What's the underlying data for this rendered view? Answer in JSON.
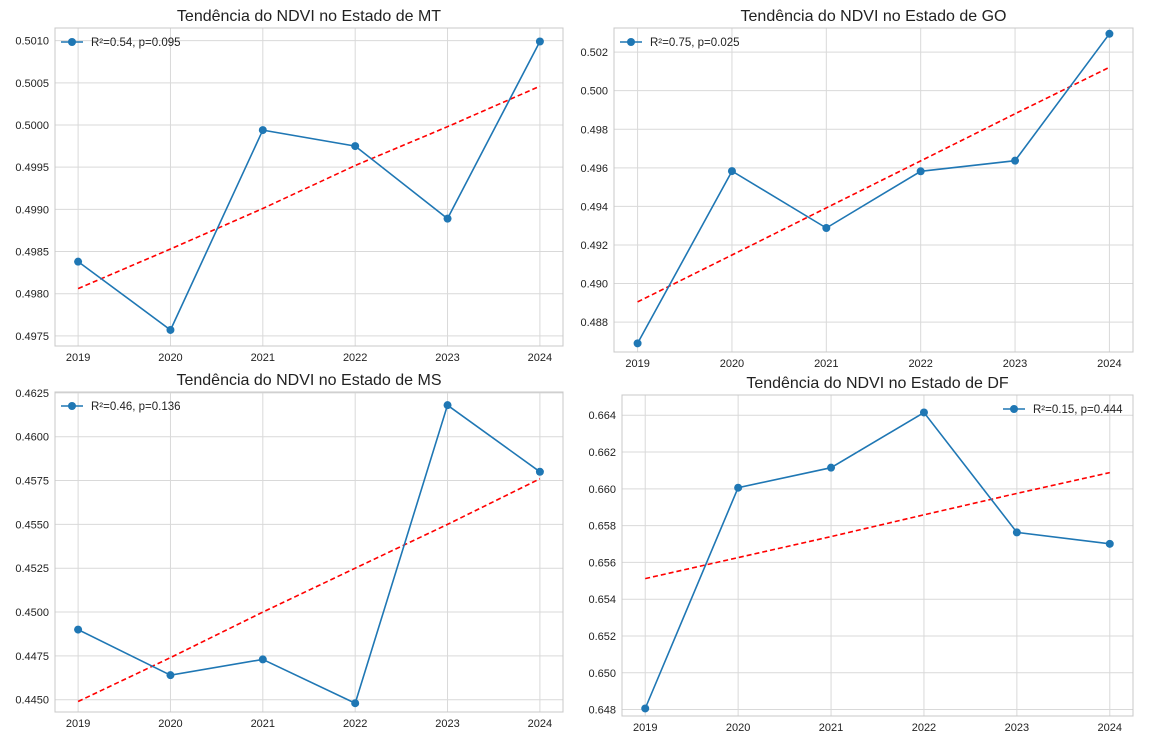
{
  "colors": {
    "line": "#1f77b4",
    "trend": "#ff0000",
    "grid": "#d9d9d9",
    "axis": "#c8c8c8",
    "text": "#222222"
  },
  "chart_data": [
    {
      "type": "line",
      "title": "Tendência do NDVI no Estado de MT",
      "x": [
        2019,
        2020,
        2021,
        2022,
        2023,
        2024
      ],
      "x_ticks": [
        "2019",
        "2020",
        "2021",
        "2022",
        "2023",
        "2024"
      ],
      "y_ticks": [
        "0.4975",
        "0.4980",
        "0.4985",
        "0.4990",
        "0.4995",
        "0.5000",
        "0.5005",
        "0.5010"
      ],
      "ylim": [
        0.49738,
        0.50115
      ],
      "series": [
        {
          "name": "R²=0.54, p=0.095",
          "values": [
            0.49838,
            0.49757,
            0.49994,
            0.49975,
            0.49889,
            0.50099
          ]
        },
        {
          "values": [
            0.49806,
            0.49853,
            0.49901,
            0.49952,
            0.49998,
            0.50046
          ]
        }
      ],
      "legend": "top-left",
      "grid": true
    },
    {
      "type": "line",
      "title": "Tendência do NDVI no Estado de GO",
      "x": [
        2019,
        2020,
        2021,
        2022,
        2023,
        2024
      ],
      "x_ticks": [
        "2019",
        "2020",
        "2021",
        "2022",
        "2023",
        "2024"
      ],
      "y_ticks": [
        "0.488",
        "0.490",
        "0.492",
        "0.494",
        "0.496",
        "0.498",
        "0.500",
        "0.502"
      ],
      "ylim": [
        0.48645,
        0.50325
      ],
      "series": [
        {
          "name": "R²=0.75, p=0.025",
          "values": [
            0.4869,
            0.49583,
            0.49288,
            0.49582,
            0.49637,
            0.50295
          ]
        },
        {
          "values": [
            0.48905,
            0.49148,
            0.49392,
            0.49636,
            0.4988,
            0.50121
          ]
        }
      ],
      "legend": "top-left",
      "grid": true
    },
    {
      "type": "line",
      "title": "Tendência do NDVI no Estado de MS",
      "x": [
        2019,
        2020,
        2021,
        2022,
        2023,
        2024
      ],
      "x_ticks": [
        "2019",
        "2020",
        "2021",
        "2022",
        "2023",
        "2024"
      ],
      "y_ticks": [
        "0.4450",
        "0.4475",
        "0.4500",
        "0.4525",
        "0.4550",
        "0.4575",
        "0.4600",
        "0.4625"
      ],
      "ylim": [
        0.4443,
        0.46255
      ],
      "series": [
        {
          "name": "R²=0.46, p=0.136",
          "values": [
            0.449,
            0.4464,
            0.4473,
            0.4448,
            0.4618,
            0.458
          ]
        },
        {
          "values": [
            0.4449,
            0.4474,
            0.45,
            0.4525,
            0.455,
            0.4576
          ]
        }
      ],
      "legend": "top-left",
      "grid": true
    },
    {
      "type": "line",
      "title": "Tendência do NDVI no Estado de DF",
      "x": [
        2019,
        2020,
        2021,
        2022,
        2023,
        2024
      ],
      "x_ticks": [
        "2019",
        "2020",
        "2021",
        "2022",
        "2023",
        "2024"
      ],
      "y_ticks": [
        "0.648",
        "0.650",
        "0.652",
        "0.654",
        "0.656",
        "0.658",
        "0.660",
        "0.662",
        "0.664"
      ],
      "ylim": [
        0.64765,
        0.6651
      ],
      "series": [
        {
          "name": "R²=0.15, p=0.444",
          "values": [
            0.64806,
            0.66006,
            0.66115,
            0.66415,
            0.65763,
            0.65701
          ]
        },
        {
          "values": [
            0.65512,
            0.65626,
            0.6574,
            0.65859,
            0.65975,
            0.66088
          ]
        }
      ],
      "legend": "top-right",
      "grid": true
    }
  ]
}
